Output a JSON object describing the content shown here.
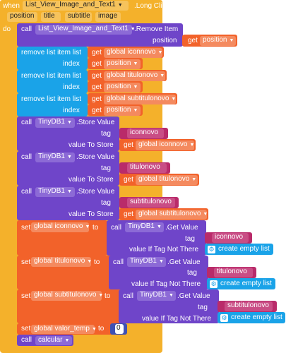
{
  "colors": {
    "event": "#f4b12b",
    "purple": "#6f45c9",
    "list": "#1aa3e8",
    "var": "#f2622a",
    "text": "#b92b6a",
    "lightgray": "#ffffff"
  },
  "event": {
    "when": "when",
    "component": "List_View_Image_and_Text1",
    "event_name": ".Long Click",
    "params": [
      "position",
      "title",
      "subtitle",
      "image"
    ],
    "do": "do"
  },
  "remove_item": {
    "call": "call",
    "component": "List_View_Image_and_Text1",
    "method": ".Remove Item",
    "arg_label": "position",
    "get": "get",
    "value": "position"
  },
  "remove_list_items": [
    {
      "label": "remove list item  list",
      "get": "get",
      "list": "global iconnovo",
      "index_label": "index",
      "index": "position"
    },
    {
      "label": "remove list item  list",
      "get": "get",
      "list": "global titulonovo",
      "index_label": "index",
      "index": "position"
    },
    {
      "label": "remove list item  list",
      "get": "get",
      "list": "global subtitulonovo",
      "index_label": "index",
      "index": "position"
    }
  ],
  "store_values": [
    {
      "call": "call",
      "component": "TinyDB1",
      "method": ".Store Value",
      "tag_label": "tag",
      "tag": "iconnovo",
      "value_label": "value To Store",
      "get": "get",
      "value": "global iconnovo"
    },
    {
      "call": "call",
      "component": "TinyDB1",
      "method": ".Store Value",
      "tag_label": "tag",
      "tag": "titulonovo",
      "value_label": "value To Store",
      "get": "get",
      "value": "global titulonovo"
    },
    {
      "call": "call",
      "component": "TinyDB1",
      "method": ".Store Value",
      "tag_label": "tag",
      "tag": "subtitulonovo",
      "value_label": "value To Store",
      "get": "get",
      "value": "global subtitulonovo"
    }
  ],
  "set_gets": [
    {
      "set": "set",
      "var": "global iconnovo",
      "to": "to",
      "call": "call",
      "component": "TinyDB1",
      "method": ".Get Value",
      "tag_label": "tag",
      "tag": "iconnovo",
      "if_label": "value If Tag Not There",
      "empty": "create empty list"
    },
    {
      "set": "set",
      "var": "global titulonovo",
      "to": "to",
      "call": "call",
      "component": "TinyDB1",
      "method": ".Get Value",
      "tag_label": "tag",
      "tag": "titulonovo",
      "if_label": "value If Tag Not There",
      "empty": "create empty list"
    },
    {
      "set": "set",
      "var": "global subtitulonovo",
      "to": "to",
      "call": "call",
      "component": "TinyDB1",
      "method": ".Get Value",
      "tag_label": "tag",
      "tag": "subtitulonovo",
      "if_label": "value If Tag Not There",
      "empty": "create empty list"
    }
  ],
  "set_temp": {
    "set": "set",
    "var": "global valor_temp",
    "to": "to",
    "value": "0"
  },
  "call_calc": {
    "call": "call",
    "procedure": "calcular"
  }
}
